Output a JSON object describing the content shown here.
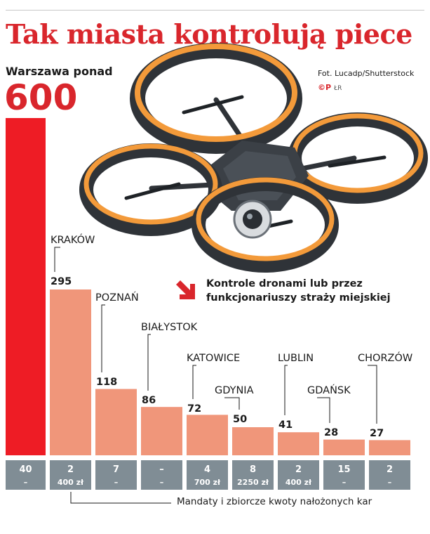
{
  "title": "Tak miasta kontrolują piece",
  "warszawa_label": "Warszawa ponad",
  "warszawa_value": "600",
  "credit": "Fot. Lucadp/Shutterstock",
  "cp_logo": "©P",
  "cp_sub": "ŁR",
  "legend": {
    "text": "Kontrole dronami lub przez funkcjonariuszy straży miejskiej",
    "arrow_icon": "diagonal-down-right-arrow-icon",
    "arrow_color": "#d9262c"
  },
  "fines_note": "Mandaty i zbiorcze kwoty nałożonych kar",
  "colors": {
    "title": "#d9262c",
    "warszawa_bar": "#ee1c25",
    "city_bar": "#f0967a",
    "fines_box": "#808d95"
  },
  "chart_data": {
    "type": "bar",
    "categories": [
      "Warszawa",
      "KRAKÓW",
      "POZNAŃ",
      "BIAŁYSTOK",
      "KATOWICE",
      "GDYNIA",
      "LUBLIN",
      "GDAŃSK",
      "CHORZÓW"
    ],
    "values": [
      600,
      295,
      118,
      86,
      72,
      50,
      41,
      28,
      27
    ],
    "value_labels": [
      "",
      "295",
      "118",
      "86",
      "72",
      "50",
      "41",
      "28",
      "27"
    ],
    "city_labels": [
      "",
      "KRAKÓW",
      "POZNAŃ",
      "BIAŁYSTOK",
      "KATOWICE",
      "GDYNIA",
      "LUBLIN",
      "GDAŃSK",
      "CHORZÓW"
    ],
    "fines": [
      {
        "count": "40",
        "amount": "–"
      },
      {
        "count": "2",
        "amount": "400 zł"
      },
      {
        "count": "7",
        "amount": "–"
      },
      {
        "count": "–",
        "amount": "–"
      },
      {
        "count": "4",
        "amount": "700 zł"
      },
      {
        "count": "8",
        "amount": "2250 zł"
      },
      {
        "count": "2",
        "amount": "400 zł"
      },
      {
        "count": "15",
        "amount": "–"
      },
      {
        "count": "2",
        "amount": "–"
      }
    ],
    "title": "Tak miasta kontrolują piece",
    "xlabel": "",
    "ylabel": "",
    "ylim": [
      0,
      600
    ],
    "grid": false
  }
}
